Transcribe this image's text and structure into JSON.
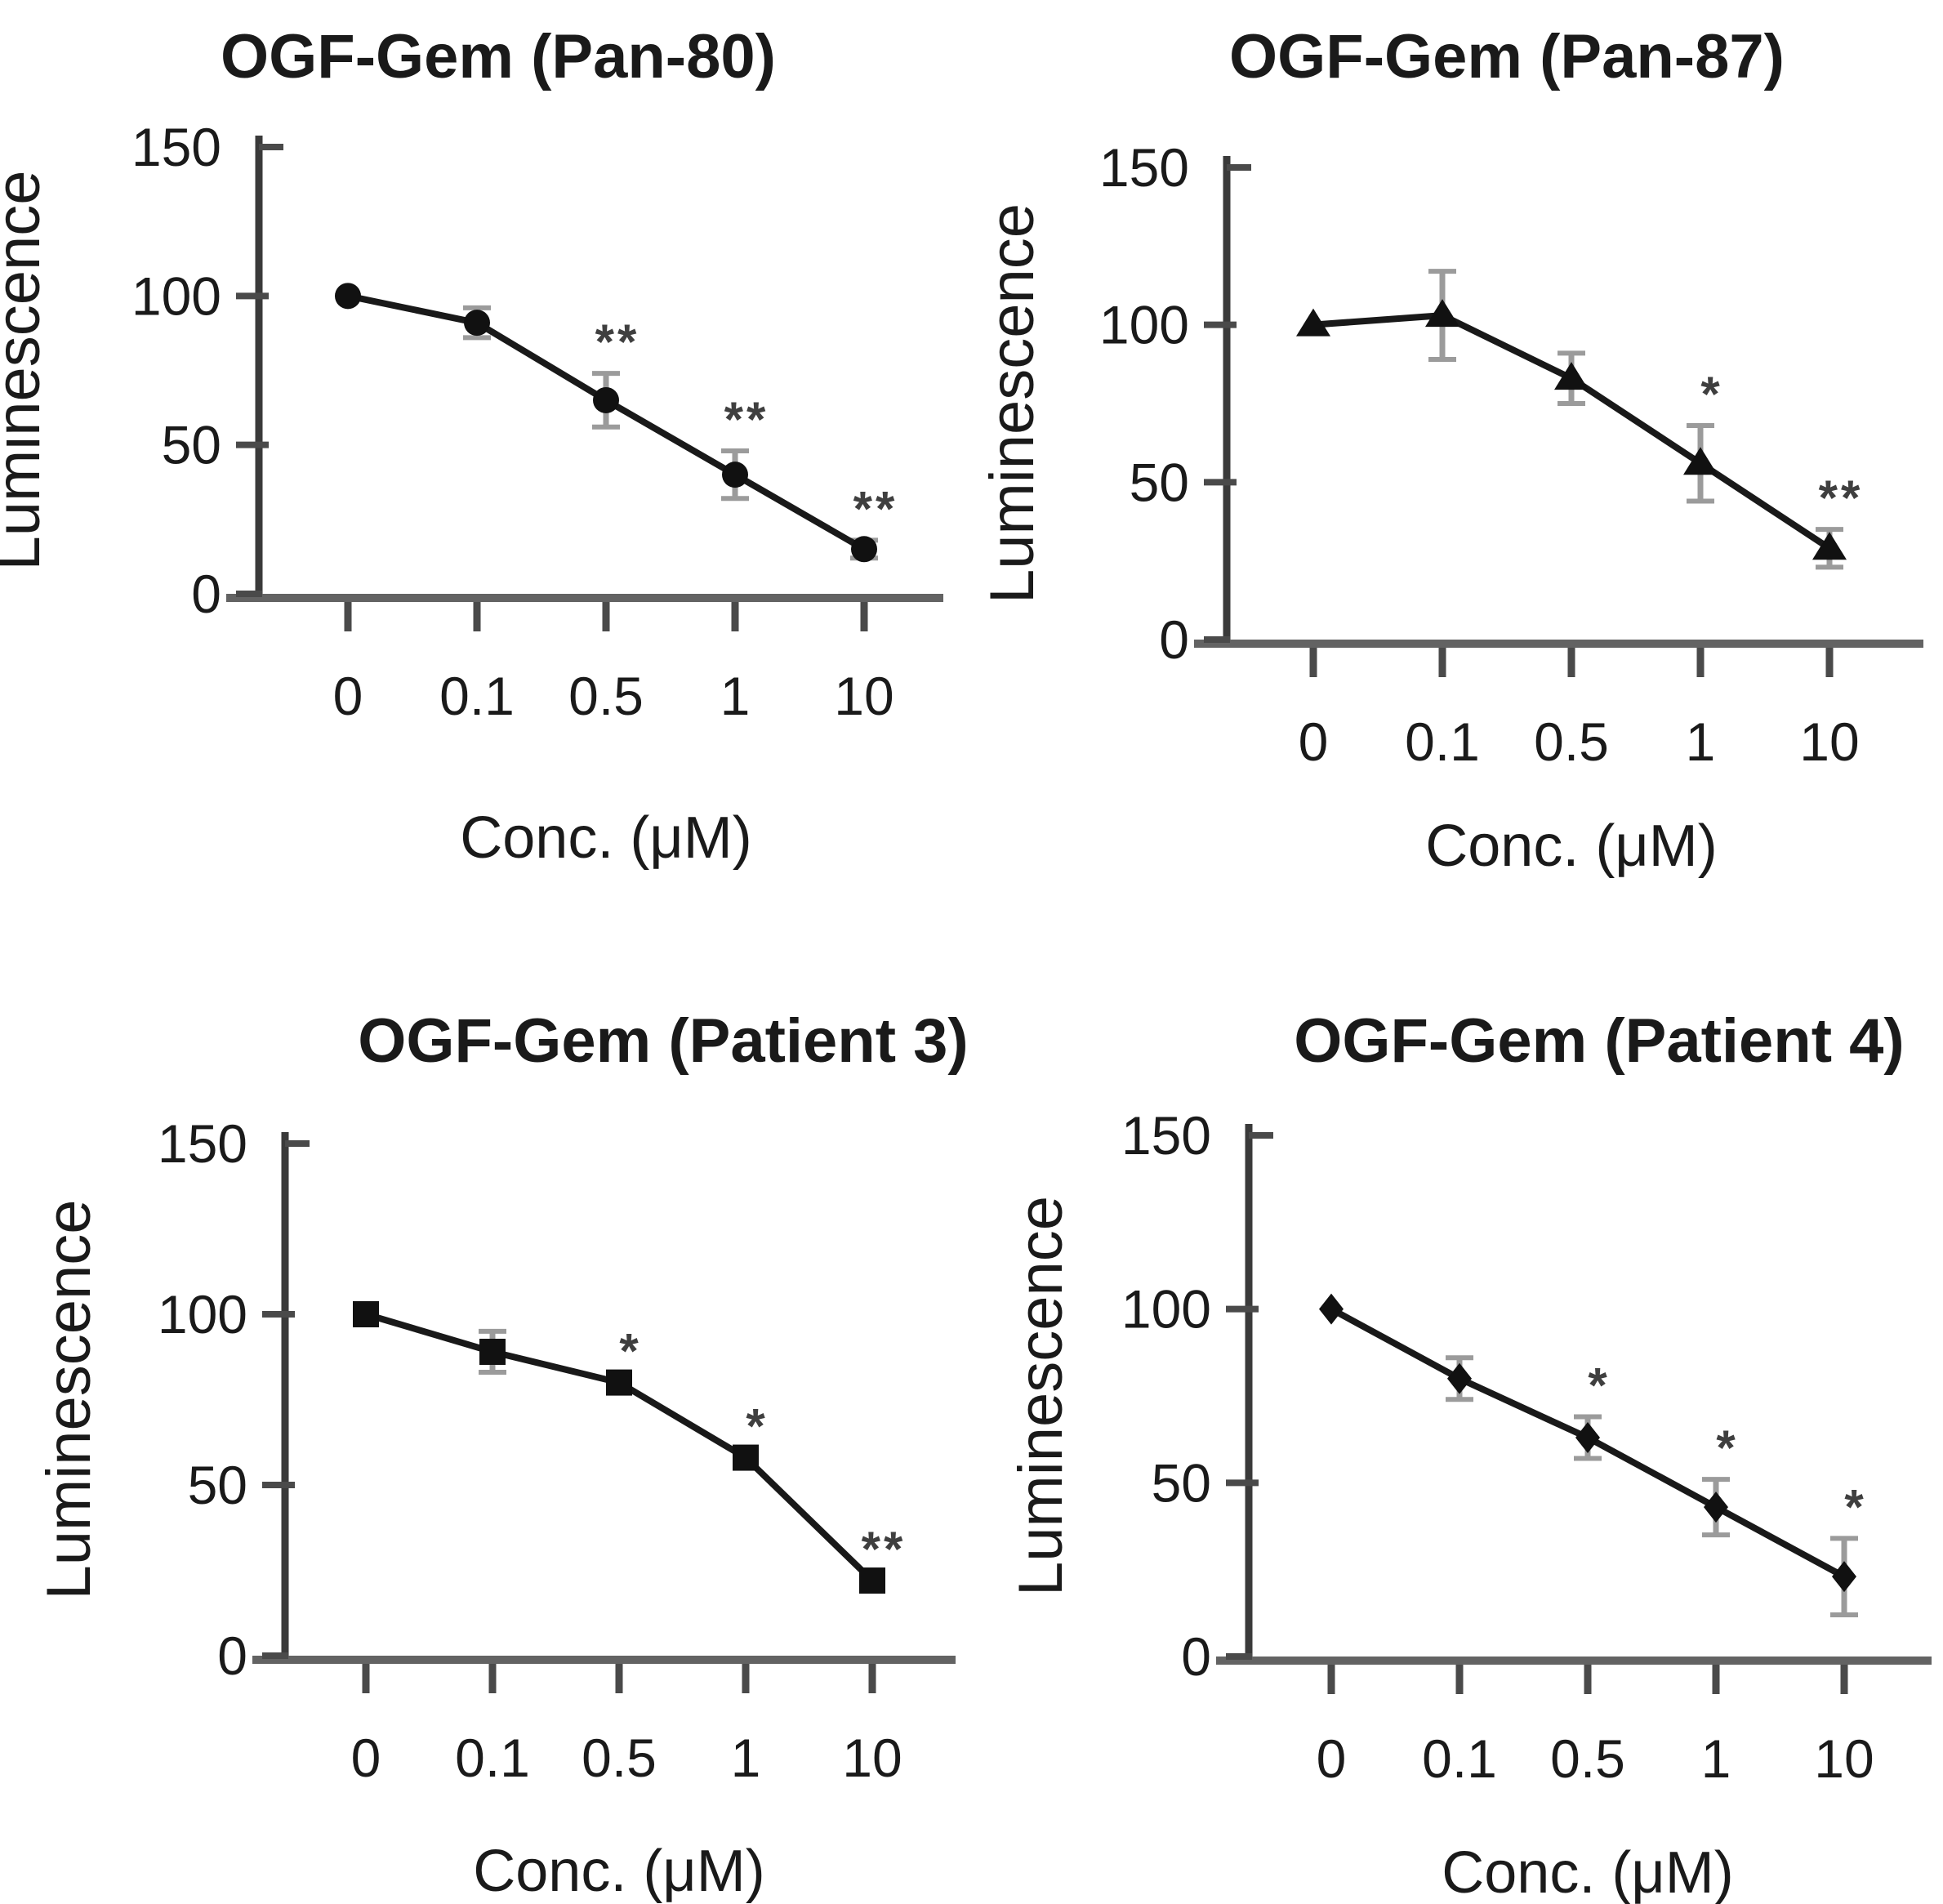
{
  "figure": {
    "background": "#ffffff",
    "panel_count": 4
  },
  "colors": {
    "text": "#1a1a1a",
    "line": "#191919",
    "marker": "#111111",
    "error_bar": "#9b9b9b",
    "axis_y": "#3a3a3a",
    "axis_x": "#636363",
    "tick": "#4a4a4a",
    "significance": "#3f3f3f"
  },
  "chart_data": [
    {
      "type": "line",
      "title": "OGF-Gem (Pan-80)",
      "marker": "circle",
      "categories": [
        "0",
        "0.1",
        "0.5",
        "1",
        "10"
      ],
      "values": [
        100,
        91,
        65,
        40,
        15
      ],
      "errors": [
        0,
        5,
        9,
        8,
        3
      ],
      "significance": [
        "",
        "",
        "**",
        "**",
        "**"
      ],
      "xlabel": "Conc. (μM)",
      "ylabel": "Luminescence",
      "ylim": [
        0,
        150
      ],
      "yticks": [
        0,
        50,
        100,
        150
      ],
      "grid": false,
      "legend": "none",
      "layout": {
        "axis_x": 317,
        "top": 180,
        "bottom": 727,
        "x0": 426,
        "dx": 158,
        "xaxis_end": 1155,
        "title_x": 610,
        "title_y": 95,
        "ylabel_x": 48,
        "xlabel_y": 1050
      }
    },
    {
      "type": "line",
      "title": "OGF-Gem (Pan-87)",
      "marker": "triangle",
      "categories": [
        "0",
        "0.1",
        "0.5",
        "1",
        "10"
      ],
      "values": [
        100,
        103,
        83,
        56,
        29
      ],
      "errors": [
        0,
        14,
        8,
        12,
        6
      ],
      "significance": [
        "",
        "",
        "",
        "*",
        "**"
      ],
      "xlabel": "Conc. (μM)",
      "ylabel": "Luminescence",
      "ylim": [
        0,
        150
      ],
      "yticks": [
        0,
        50,
        100,
        150
      ],
      "grid": false,
      "legend": "none",
      "layout": {
        "axis_x": 312,
        "top": 205,
        "bottom": 783,
        "x0": 418,
        "dx": 158,
        "xaxis_end": 1165,
        "title_x": 655,
        "title_y": 95,
        "ylabel_x": 75,
        "xlabel_y": 1060
      }
    },
    {
      "type": "line",
      "title": "OGF-Gem (Patient 3)",
      "marker": "square",
      "categories": [
        "0",
        "0.1",
        "0.5",
        "1",
        "10"
      ],
      "values": [
        100,
        89,
        80,
        58,
        22
      ],
      "errors": [
        0,
        6,
        0,
        0,
        0
      ],
      "significance": [
        "",
        "",
        "*",
        "*",
        "**"
      ],
      "xlabel": "Conc. (μM)",
      "ylabel": "Luminescence",
      "ylim": [
        0,
        150
      ],
      "yticks": [
        0,
        50,
        100,
        150
      ],
      "grid": false,
      "legend": "none",
      "layout": {
        "axis_x": 349,
        "top": 235,
        "bottom": 862,
        "x0": 448,
        "dx": 155,
        "xaxis_end": 1170,
        "title_x": 812,
        "title_y": 135,
        "ylabel_x": 110,
        "xlabel_y": 1150
      }
    },
    {
      "type": "line",
      "title": "OGF-Gem (Patient 4)",
      "marker": "diamond",
      "categories": [
        "0",
        "0.1",
        "0.5",
        "1",
        "10"
      ],
      "values": [
        100,
        80,
        63,
        43,
        23
      ],
      "errors": [
        0,
        6,
        6,
        8,
        11
      ],
      "significance": [
        "",
        "",
        "*",
        "*",
        "*"
      ],
      "xlabel": "Conc. (μM)",
      "ylabel": "Luminescence",
      "ylim": [
        0,
        150
      ],
      "yticks": [
        0,
        50,
        100,
        150
      ],
      "grid": false,
      "legend": "none",
      "layout": {
        "axis_x": 339,
        "top": 225,
        "bottom": 863,
        "x0": 440,
        "dx": 157,
        "xaxis_end": 1175,
        "title_x": 768,
        "title_y": 135,
        "ylabel_x": 110,
        "xlabel_y": 1152
      }
    }
  ]
}
